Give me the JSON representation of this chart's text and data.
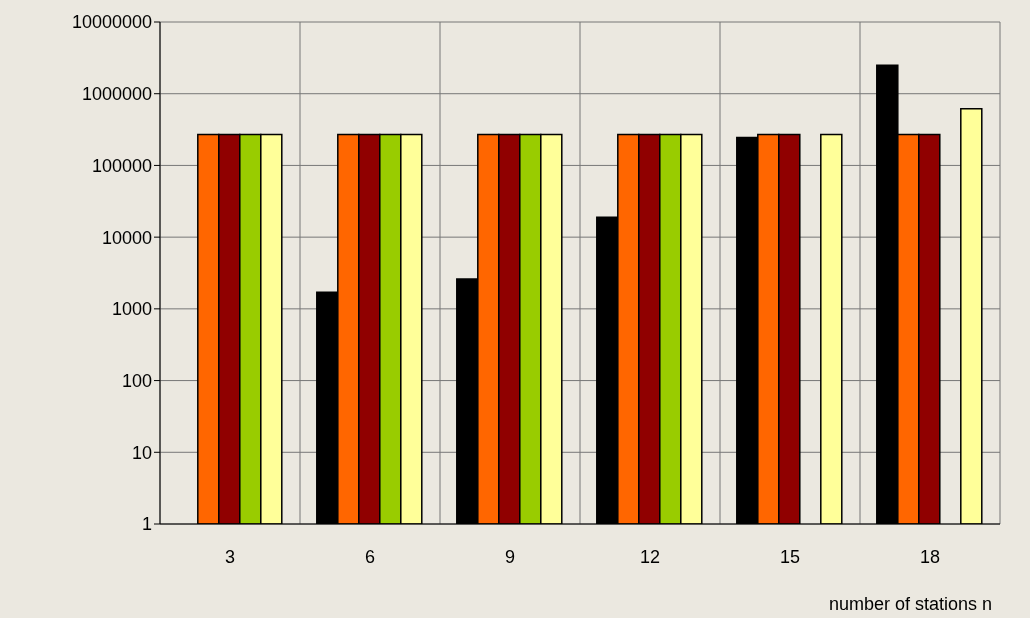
{
  "chart_data": {
    "type": "bar",
    "xlabel": "number of stations n",
    "categories": [
      "3",
      "6",
      "9",
      "12",
      "15",
      "18"
    ],
    "series": [
      {
        "color": "#000000",
        "values": [
          null,
          1700,
          2600,
          19000,
          245000,
          2500000
        ]
      },
      {
        "color": "#ff6600",
        "values": [
          270000,
          270000,
          270000,
          270000,
          270000,
          270000
        ]
      },
      {
        "color": "#900000",
        "values": [
          270000,
          270000,
          270000,
          270000,
          270000,
          270000
        ]
      },
      {
        "color": "#99cc00",
        "values": [
          270000,
          270000,
          270000,
          270000,
          null,
          null
        ]
      },
      {
        "color": "#ffff99",
        "values": [
          270000,
          270000,
          270000,
          270000,
          270000,
          615000
        ]
      }
    ],
    "log": true,
    "ylim": [
      1,
      10000000
    ],
    "yticks": [
      1,
      10,
      100,
      1000,
      10000,
      100000,
      1000000,
      10000000
    ],
    "grid": true
  }
}
